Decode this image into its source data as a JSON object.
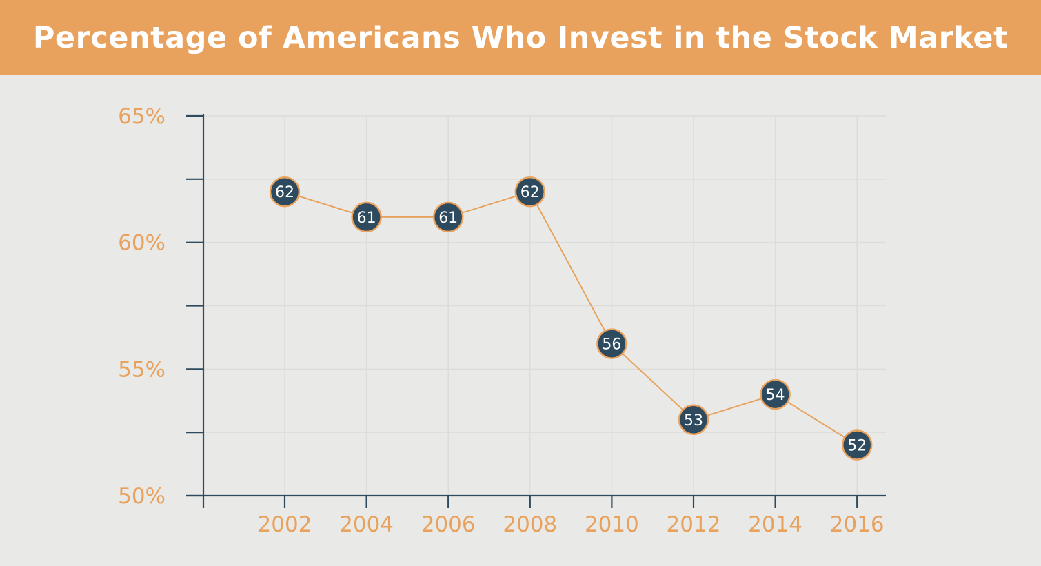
{
  "colors": {
    "header_bg": "#e8a25e",
    "background": "#e9e9e7",
    "axis": "#2d4a5e",
    "line": "#e8a25e",
    "point_fill": "#2d4a5e",
    "point_stroke": "#e8a25e",
    "grid": "#dcdcda",
    "tick_text": "#e8a25e"
  },
  "chart_data": {
    "type": "line",
    "title": "Percentage of Americans Who Invest in the Stock Market",
    "xlabel": "",
    "ylabel": "",
    "x": [
      "2002",
      "2004",
      "2006",
      "2008",
      "2010",
      "2012",
      "2014",
      "2016"
    ],
    "series": [
      {
        "values": [
          62,
          61,
          61,
          62,
          56,
          53,
          54,
          52
        ],
        "labels": [
          "62",
          "61",
          "61",
          "62",
          "56",
          "53",
          "54",
          "52"
        ]
      }
    ],
    "ylim": [
      50,
      65
    ],
    "y_ticks": [
      50,
      55,
      60,
      65
    ],
    "y_tick_labels": [
      "50%",
      "55%",
      "60%",
      "65%"
    ],
    "grid": true,
    "legend": "none"
  }
}
